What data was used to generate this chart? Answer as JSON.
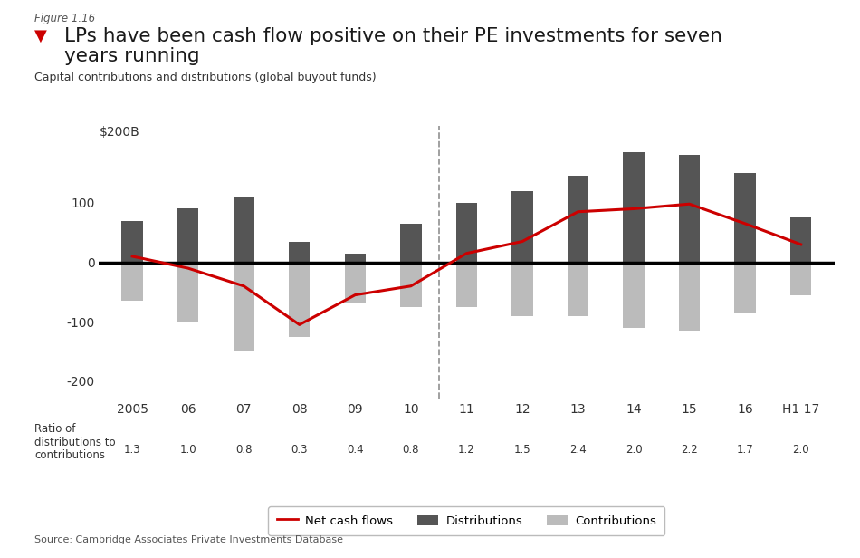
{
  "figure_label": "Figure 1.16",
  "title_line1": "LPs have been cash flow positive on their PE investments for seven",
  "title_line2": "years running",
  "subtitle": "Capital contributions and distributions (global buyout funds)",
  "ylabel": "$200B",
  "source": "Source: Cambridge Associates Private Investments Database",
  "years": [
    "2005",
    "06",
    "07",
    "08",
    "09",
    "10",
    "11",
    "12",
    "13",
    "14",
    "15",
    "16",
    "H1 17"
  ],
  "distributions": [
    70,
    90,
    110,
    35,
    15,
    65,
    100,
    120,
    145,
    185,
    180,
    150,
    75
  ],
  "contributions": [
    -65,
    -100,
    -150,
    -125,
    -70,
    -75,
    -75,
    -90,
    -90,
    -110,
    -115,
    -85,
    -55
  ],
  "net_cash_flows": [
    10,
    -10,
    -40,
    -105,
    -55,
    -40,
    15,
    35,
    85,
    90,
    98,
    65,
    30
  ],
  "ratios": [
    "1.3",
    "1.0",
    "0.8",
    "0.3",
    "0.4",
    "0.8",
    "1.2",
    "1.5",
    "2.4",
    "2.0",
    "2.2",
    "1.7",
    "2.0"
  ],
  "dashed_line_after_index": 5,
  "dist_color": "#555555",
  "contrib_color": "#bbbbbb",
  "net_color": "#cc0000",
  "background_color": "#ffffff",
  "ylim_min": -230,
  "ylim_max": 230,
  "yticks": [
    -200,
    -100,
    0,
    100
  ],
  "bar_width": 0.38,
  "title_color": "#222222",
  "red_triangle_color": "#cc0000"
}
